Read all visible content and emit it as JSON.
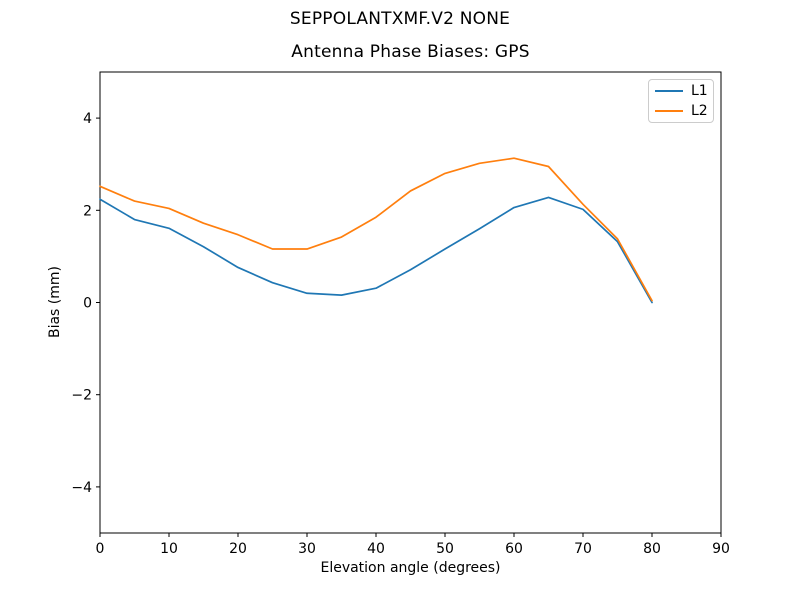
{
  "figure": {
    "title": "SEPPOLANTXMF.V2 NONE"
  },
  "chart_data": {
    "type": "line",
    "title": "Antenna Phase Biases: GPS",
    "xlabel": "Elevation angle (degrees)",
    "ylabel": "Bias (mm)",
    "xlim": [
      0,
      90
    ],
    "ylim": [
      -5,
      5
    ],
    "grid": false,
    "legend_position": "upper right",
    "x": [
      0,
      5,
      10,
      15,
      20,
      25,
      30,
      35,
      40,
      45,
      50,
      55,
      60,
      65,
      70,
      75,
      80
    ],
    "series": [
      {
        "name": "L1",
        "color": "#1f77b4",
        "values": [
          2.24,
          1.8,
          1.61,
          1.21,
          0.76,
          0.43,
          0.2,
          0.16,
          0.31,
          0.71,
          1.16,
          1.6,
          2.06,
          2.28,
          2.02,
          1.32,
          0.0
        ]
      },
      {
        "name": "L2",
        "color": "#ff7f0e",
        "values": [
          2.52,
          2.2,
          2.04,
          1.72,
          1.47,
          1.16,
          1.16,
          1.42,
          1.85,
          2.42,
          2.8,
          3.02,
          3.13,
          2.95,
          2.13,
          1.38,
          0.04
        ]
      }
    ],
    "xticks": {
      "values": [
        0,
        10,
        20,
        30,
        40,
        50,
        60,
        70,
        80,
        90
      ],
      "labels": [
        "0",
        "10",
        "20",
        "30",
        "40",
        "50",
        "60",
        "70",
        "80",
        "90"
      ]
    },
    "yticks": {
      "values": [
        -4,
        -2,
        0,
        2,
        4
      ],
      "labels": [
        "−4",
        "−2",
        "0",
        "2",
        "4"
      ]
    }
  }
}
